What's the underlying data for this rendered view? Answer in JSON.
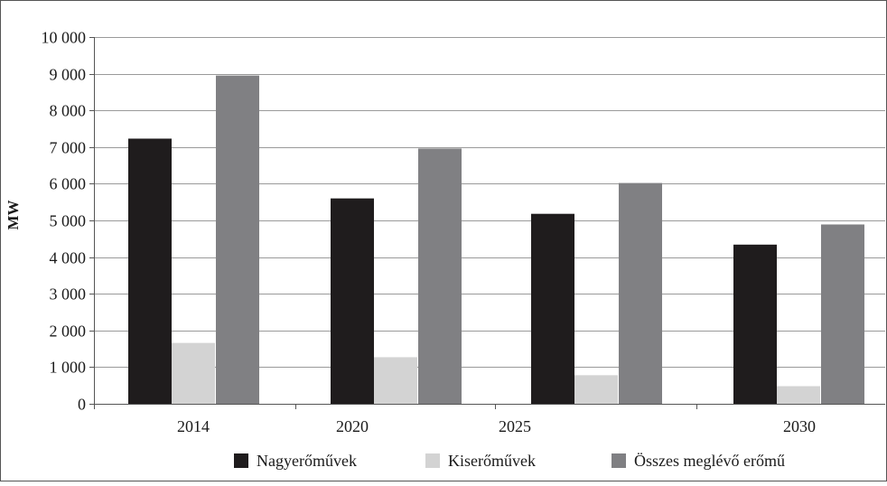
{
  "chart_data": {
    "type": "bar",
    "title": "",
    "xlabel": "",
    "ylabel": "MW",
    "ylim": [
      0,
      10000
    ],
    "yticks": [
      0,
      1000,
      2000,
      3000,
      4000,
      5000,
      6000,
      7000,
      8000,
      9000,
      10000
    ],
    "ytick_labels": [
      "0",
      "1 000",
      "2 000",
      "3 000",
      "4 000",
      "5 000",
      "6 000",
      "7 000",
      "8 000",
      "9 000",
      "10 000"
    ],
    "grid": true,
    "legend_position": "bottom",
    "categories": [
      "2014",
      "2020",
      "2025",
      "2030"
    ],
    "series": [
      {
        "name": "Nagyerőművek",
        "color": "#1f1c1d",
        "values": [
          7230,
          5600,
          5180,
          4340
        ]
      },
      {
        "name": "Kiserőművek",
        "color": "#d3d3d3",
        "values": [
          1660,
          1270,
          780,
          480
        ]
      },
      {
        "name": "Összes meglévő erőmű",
        "color": "#808083",
        "values": [
          8950,
          6960,
          6020,
          4890
        ]
      }
    ]
  }
}
